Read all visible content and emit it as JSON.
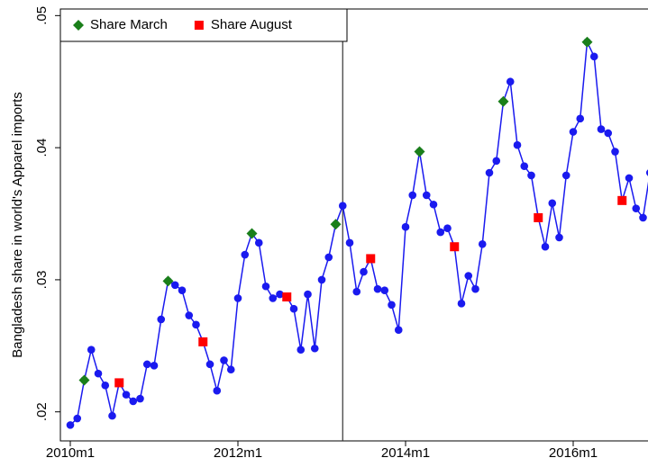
{
  "chart_data": {
    "type": "line",
    "y_label": "Bangladesh share in world's Apparel imports",
    "x": [
      "2010m1",
      "2010m2",
      "2010m3",
      "2010m4",
      "2010m5",
      "2010m6",
      "2010m7",
      "2010m8",
      "2010m9",
      "2010m10",
      "2010m11",
      "2010m12",
      "2011m1",
      "2011m2",
      "2011m3",
      "2011m4",
      "2011m5",
      "2011m6",
      "2011m7",
      "2011m8",
      "2011m9",
      "2011m10",
      "2011m11",
      "2011m12",
      "2012m1",
      "2012m2",
      "2012m3",
      "2012m4",
      "2012m5",
      "2012m6",
      "2012m7",
      "2012m8",
      "2012m9",
      "2012m10",
      "2012m11",
      "2012m12",
      "2013m1",
      "2013m2",
      "2013m3",
      "2013m4",
      "2013m5",
      "2013m6",
      "2013m7",
      "2013m8",
      "2013m9",
      "2013m10",
      "2013m11",
      "2013m12",
      "2014m1",
      "2014m2",
      "2014m3",
      "2014m4",
      "2014m5",
      "2014m6",
      "2014m7",
      "2014m8",
      "2014m9",
      "2014m10",
      "2014m11",
      "2014m12",
      "2015m1",
      "2015m2",
      "2015m3",
      "2015m4",
      "2015m5",
      "2015m6",
      "2015m7",
      "2015m8",
      "2015m9",
      "2015m10",
      "2015m11",
      "2015m12",
      "2016m1",
      "2016m2",
      "2016m3",
      "2016m4",
      "2016m5",
      "2016m6",
      "2016m7",
      "2016m8",
      "2016m9",
      "2016m10",
      "2016m11",
      "2016m12"
    ],
    "series": [
      {
        "color": "#1a1aef",
        "marker": "circle",
        "values": [
          0.019,
          0.0195,
          0.0224,
          0.0247,
          0.0229,
          0.022,
          0.0197,
          0.0222,
          0.0213,
          0.0208,
          0.021,
          0.0236,
          0.0235,
          0.027,
          0.0299,
          0.0296,
          0.0292,
          0.0273,
          0.0266,
          0.0253,
          0.0236,
          0.0216,
          0.0239,
          0.0232,
          0.0286,
          0.0319,
          0.0335,
          0.0328,
          0.0295,
          0.0286,
          0.0289,
          0.0287,
          0.0278,
          0.0247,
          0.0289,
          0.0248,
          0.03,
          0.0317,
          0.0342,
          0.0356,
          0.0328,
          0.0291,
          0.0306,
          0.0316,
          0.0293,
          0.0292,
          0.0281,
          0.0262,
          0.034,
          0.0364,
          0.0397,
          0.0364,
          0.0357,
          0.0336,
          0.0339,
          0.0325,
          0.0282,
          0.0303,
          0.0293,
          0.0327,
          0.0381,
          0.039,
          0.0435,
          0.045,
          0.0402,
          0.0386,
          0.0379,
          0.0347,
          0.0325,
          0.0358,
          0.0332,
          0.0379,
          0.0412,
          0.0422,
          0.048,
          0.0469,
          0.0414,
          0.0411,
          0.0397,
          0.036,
          0.0377,
          0.0354,
          0.0347,
          0.0381
        ]
      },
      {
        "name": "Share March",
        "color": "#1a7f1a",
        "marker": "diamond",
        "values": [
          null,
          null,
          0.0224,
          null,
          null,
          null,
          null,
          null,
          null,
          null,
          null,
          null,
          null,
          null,
          0.0299,
          null,
          null,
          null,
          null,
          null,
          null,
          null,
          null,
          null,
          null,
          null,
          0.0335,
          null,
          null,
          null,
          null,
          null,
          null,
          null,
          null,
          null,
          null,
          null,
          0.0342,
          null,
          null,
          null,
          null,
          null,
          null,
          null,
          null,
          null,
          null,
          null,
          0.0397,
          null,
          null,
          null,
          null,
          null,
          null,
          null,
          null,
          null,
          null,
          null,
          0.0435,
          null,
          null,
          null,
          null,
          null,
          null,
          null,
          null,
          null,
          null,
          null,
          0.048,
          null,
          null,
          null,
          null,
          null,
          null,
          null,
          null,
          null
        ]
      },
      {
        "name": "Share August",
        "color": "#ff0000",
        "marker": "square",
        "values": [
          null,
          null,
          null,
          null,
          null,
          null,
          null,
          0.0222,
          null,
          null,
          null,
          null,
          null,
          null,
          null,
          null,
          null,
          null,
          null,
          0.0253,
          null,
          null,
          null,
          null,
          null,
          null,
          null,
          null,
          null,
          null,
          null,
          0.0287,
          null,
          null,
          null,
          null,
          null,
          null,
          null,
          null,
          null,
          null,
          null,
          0.0316,
          null,
          null,
          null,
          null,
          null,
          null,
          null,
          null,
          null,
          null,
          null,
          0.0325,
          null,
          null,
          null,
          null,
          null,
          null,
          null,
          null,
          null,
          null,
          null,
          0.0347,
          null,
          null,
          null,
          null,
          null,
          null,
          null,
          null,
          null,
          null,
          null,
          0.036,
          null,
          null,
          null,
          null
        ]
      }
    ],
    "xticks": [
      "2010m1",
      "2012m1",
      "2014m1",
      "2016m1"
    ],
    "xline": "2013m4",
    "ylim": [
      0.0178,
      0.0505
    ],
    "yticks": [
      {
        "value": 0.02,
        "label": ".02"
      },
      {
        "value": 0.03,
        "label": ".03"
      },
      {
        "value": 0.04,
        "label": ".04"
      },
      {
        "value": 0.05,
        "label": ".05"
      }
    ],
    "legend": "top-left"
  }
}
